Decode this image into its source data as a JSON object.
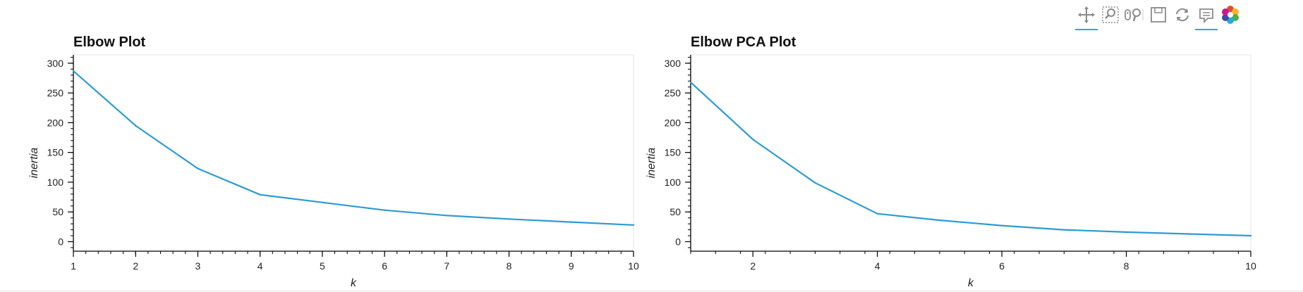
{
  "toolbar": {
    "tools": [
      {
        "name": "pan-tool",
        "icon": "pan-icon",
        "active": true
      },
      {
        "name": "box-zoom-tool",
        "icon": "box-zoom-icon",
        "active": false
      },
      {
        "name": "wheel-zoom-tool",
        "icon": "wheel-zoom-icon",
        "active": false
      },
      {
        "name": "save-tool",
        "icon": "save-icon",
        "active": false
      },
      {
        "name": "reset-tool",
        "icon": "reset-icon",
        "active": false
      },
      {
        "name": "hover-tool",
        "icon": "hover-icon",
        "active": true
      },
      {
        "name": "bokeh-logo",
        "icon": "bokeh-logo-icon",
        "active": false
      }
    ]
  },
  "line_color": "#2b9bd6",
  "chart_data": [
    {
      "type": "line",
      "title": "Elbow Plot",
      "xlabel": "k",
      "ylabel": "inertia",
      "x": [
        1,
        2,
        3,
        4,
        5,
        6,
        7,
        8,
        9,
        10
      ],
      "series": [
        {
          "values": [
            287,
            195,
            123,
            79,
            66,
            53,
            44,
            38,
            33,
            28
          ]
        }
      ],
      "xlim": [
        1,
        10
      ],
      "ylim": [
        -16,
        314
      ],
      "xticks": [
        1,
        2,
        3,
        4,
        5,
        6,
        7,
        8,
        9,
        10
      ],
      "yticks": [
        0,
        50,
        100,
        150,
        200,
        250,
        300
      ],
      "grid": false,
      "legend": "none"
    },
    {
      "type": "line",
      "title": "Elbow PCA Plot",
      "xlabel": "k",
      "ylabel": "inertia",
      "x": [
        1,
        2,
        3,
        4,
        5,
        6,
        7,
        8,
        9,
        10
      ],
      "series": [
        {
          "values": [
            268,
            172,
            99,
            47,
            36,
            27,
            20,
            16,
            13,
            10
          ]
        }
      ],
      "xlim": [
        1,
        10
      ],
      "ylim": [
        -16,
        314
      ],
      "xticks": [
        2,
        4,
        6,
        8,
        10
      ],
      "yticks": [
        0,
        50,
        100,
        150,
        200,
        250,
        300
      ],
      "grid": false,
      "legend": "none"
    }
  ]
}
